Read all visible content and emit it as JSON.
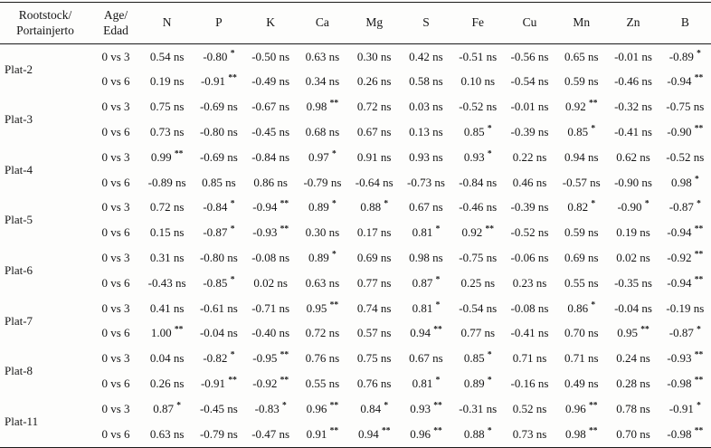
{
  "table": {
    "header": {
      "rootstock": "Rootstock/\nPortainjerto",
      "age": "Age/\nEdad",
      "elements": [
        "N",
        "P",
        "K",
        "Ca",
        "Mg",
        "S",
        "Fe",
        "Cu",
        "Mn",
        "Zn",
        "B"
      ]
    },
    "groups": [
      {
        "rootstock": "Plat-2",
        "rows": [
          {
            "age": "0 vs 3",
            "values": [
              "0.54 ns",
              "-0.80 *",
              "-0.50 ns",
              "0.63 ns",
              "0.30 ns",
              "0.42 ns",
              "-0.51 ns",
              "-0.56 ns",
              "0.65 ns",
              "-0.01 ns",
              "-0.89 *"
            ]
          },
          {
            "age": "0 vs 6",
            "values": [
              "0.19 ns",
              "-0.91 **",
              "-0.49 ns",
              "0.34 ns",
              "0.26 ns",
              "0.58 ns",
              "0.10 ns",
              "-0.54 ns",
              "0.59 ns",
              "-0.46 ns",
              "-0.94 **"
            ]
          }
        ]
      },
      {
        "rootstock": "Plat-3",
        "rows": [
          {
            "age": "0 vs 3",
            "values": [
              "0.75 ns",
              "-0.69 ns",
              "-0.67 ns",
              "0.98 **",
              "0.72 ns",
              "0.03 ns",
              "-0.52 ns",
              "-0.01 ns",
              "0.92 **",
              "-0.32 ns",
              "-0.75 ns"
            ]
          },
          {
            "age": "0 vs 6",
            "values": [
              "0.73 ns",
              "-0.80 ns",
              "-0.45 ns",
              "0.68 ns",
              "0.67 ns",
              "0.13 ns",
              "0.85 *",
              "-0.39 ns",
              "0.85 *",
              "-0.41 ns",
              "-0.90 **"
            ]
          }
        ]
      },
      {
        "rootstock": "Plat-4",
        "rows": [
          {
            "age": "0 vs 3",
            "values": [
              "0.99 **",
              "-0.69 ns",
              "-0.84 ns",
              "0.97 *",
              "0.91 ns",
              "0.93 ns",
              "0.93 *",
              "0.22 ns",
              "0.94 ns",
              "0.62 ns",
              "-0.52 ns"
            ]
          },
          {
            "age": "0 vs 6",
            "values": [
              "-0.89 ns",
              "0.85 ns",
              "0.86 ns",
              "-0.79 ns",
              "-0.64 ns",
              "-0.73 ns",
              "-0.84 ns",
              "0.46 ns",
              "-0.57 ns",
              "-0.90 ns",
              "0.98 *"
            ]
          }
        ]
      },
      {
        "rootstock": "Plat-5",
        "rows": [
          {
            "age": "0 vs 3",
            "values": [
              "0.72 ns",
              "-0.84 *",
              "-0.94 **",
              "0.89 *",
              "0.88 *",
              "0.67 ns",
              "-0.46 ns",
              "-0.39 ns",
              "0.82 *",
              "-0.90 *",
              "-0.87 *"
            ]
          },
          {
            "age": "0 vs 6",
            "values": [
              "0.15 ns",
              "-0.87 *",
              "-0.93 **",
              "0.30 ns",
              "0.17 ns",
              "0.81 *",
              "0.92 **",
              "-0.52 ns",
              "0.59 ns",
              "0.19 ns",
              "-0.94 **"
            ]
          }
        ]
      },
      {
        "rootstock": "Plat-6",
        "rows": [
          {
            "age": "0 vs 3",
            "values": [
              "0.31 ns",
              "-0.80 ns",
              "-0.08 ns",
              "0.89 *",
              "0.69 ns",
              "0.98 ns",
              "-0.75 ns",
              "-0.06 ns",
              "0.69 ns",
              "0.02 ns",
              "-0.92 **"
            ]
          },
          {
            "age": "0 vs 6",
            "values": [
              "-0.43 ns",
              "-0.85 *",
              "0.02 ns",
              "0.63 ns",
              "0.77 ns",
              "0.87 *",
              "0.25 ns",
              "0.23 ns",
              "0.55 ns",
              "-0.35 ns",
              "-0.94 **"
            ]
          }
        ]
      },
      {
        "rootstock": "Plat-7",
        "rows": [
          {
            "age": "0 vs 3",
            "values": [
              "0.41 ns",
              "-0.61 ns",
              "-0.71 ns",
              "0.95 **",
              "0.74 ns",
              "0.81 *",
              "-0.54 ns",
              "-0.08 ns",
              "0.86 *",
              "-0.04 ns",
              "-0.19 ns"
            ]
          },
          {
            "age": "0 vs 6",
            "values": [
              "1.00 **",
              "-0.04 ns",
              "-0.40 ns",
              "0.72 ns",
              "0.57 ns",
              "0.94 **",
              "0.77 ns",
              "-0.41 ns",
              "0.70 ns",
              "0.95 **",
              "-0.87 *"
            ]
          }
        ]
      },
      {
        "rootstock": "Plat-8",
        "rows": [
          {
            "age": "0 vs 3",
            "values": [
              "0.04 ns",
              "-0.82 *",
              "-0.95 **",
              "0.76 ns",
              "0.75 ns",
              "0.67 ns",
              "0.85 *",
              "0.71 ns",
              "0.71 ns",
              "0.24 ns",
              "-0.93 **"
            ]
          },
          {
            "age": "0 vs 6",
            "values": [
              "0.26 ns",
              "-0.91 **",
              "-0.92 **",
              "0.55 ns",
              "0.76 ns",
              "0.81 *",
              "0.89 *",
              "-0.16 ns",
              "0.49 ns",
              "0.28 ns",
              "-0.98 **"
            ]
          }
        ]
      },
      {
        "rootstock": "Plat-11",
        "rows": [
          {
            "age": "0 vs 3",
            "values": [
              "0.87 *",
              "-0.45 ns",
              "-0.83 *",
              "0.96 **",
              "0.84 *",
              "0.93 **",
              "-0.31 ns",
              "0.52 ns",
              "0.96 **",
              "0.78 ns",
              "-0.91 *"
            ]
          },
          {
            "age": "0 vs 6",
            "values": [
              "0.63 ns",
              "-0.79 ns",
              "-0.47 ns",
              "0.91 **",
              "0.94 **",
              "0.96 **",
              "0.88 *",
              "0.73 ns",
              "0.98 **",
              "0.70 ns",
              "-0.98 **"
            ]
          }
        ]
      }
    ]
  }
}
